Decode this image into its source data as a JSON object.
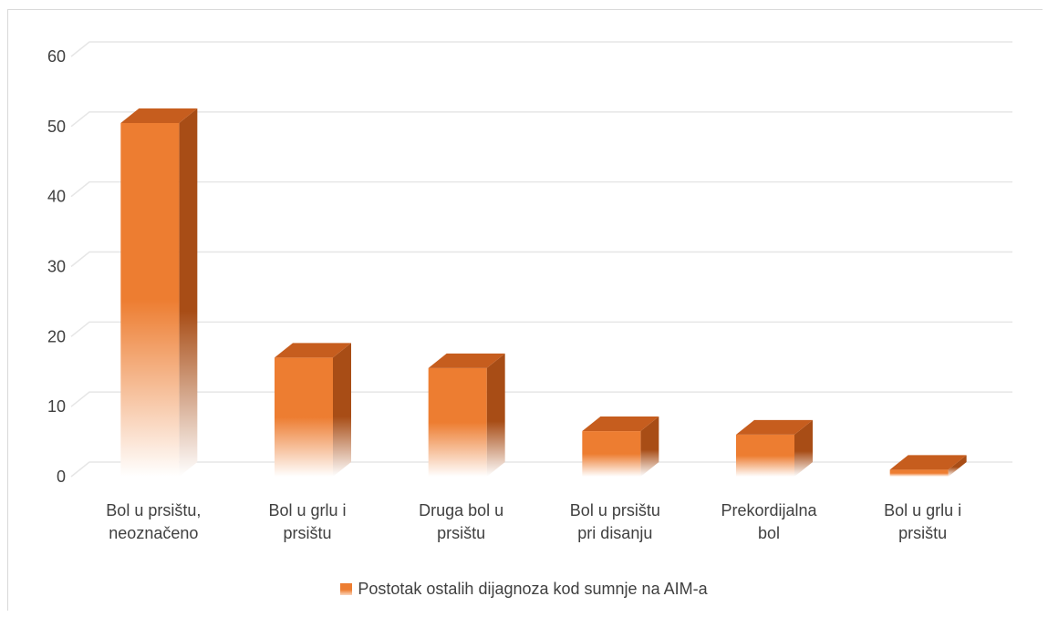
{
  "chart_data": {
    "type": "bar",
    "categories": [
      [
        "Bol u prsištu,",
        "neoznačeno"
      ],
      [
        "Bol u grlu i",
        "prsištu"
      ],
      [
        "Druga bol u",
        "prsištu"
      ],
      [
        "Bol u prsištu",
        "pri disanju"
      ],
      [
        "Prekordijalna",
        "bol"
      ],
      [
        "Bol u grlu i",
        "prsištu"
      ]
    ],
    "series": [
      {
        "name": "Postotak ostalih dijagnoza kod sumnje na AIM-a",
        "values": [
          50.5,
          17.0,
          15.5,
          6.5,
          6.0,
          1.0
        ]
      }
    ],
    "ylim": [
      0,
      60
    ],
    "yticks": [
      0,
      10,
      20,
      30,
      40,
      50,
      60
    ],
    "grid": true,
    "legend_position": "bottom",
    "three_d": true,
    "colors": {
      "front": "#ed7d31",
      "side": "#a84d16",
      "top": "#c65d1e",
      "fade": "#ffffff",
      "grid": "#e6e6e6",
      "text": "#404040"
    }
  }
}
